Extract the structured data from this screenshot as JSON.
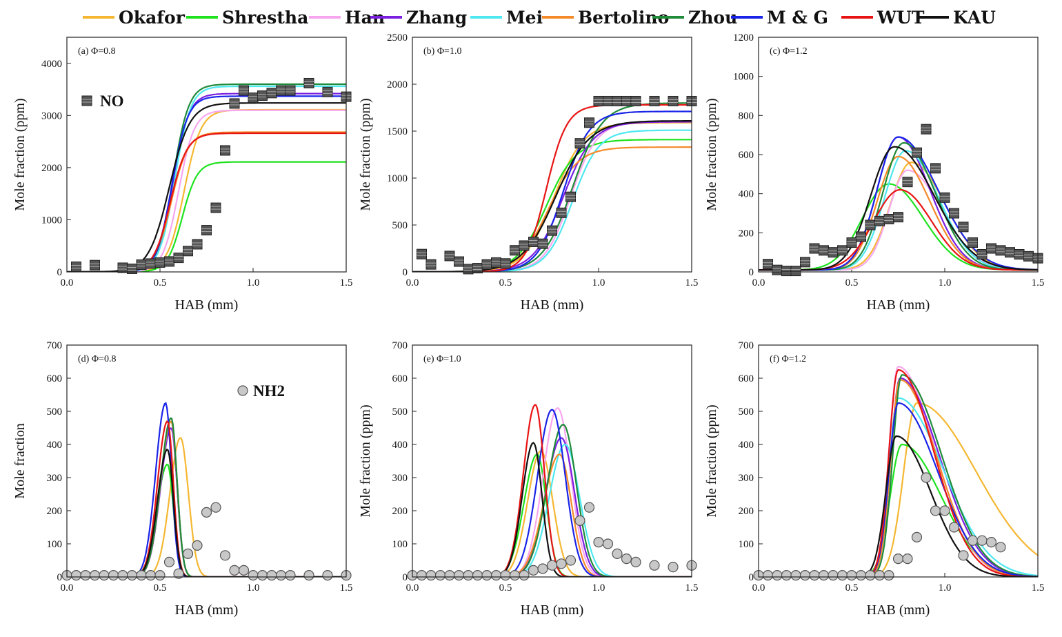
{
  "legend": [
    {
      "name": "Okafor",
      "color": "#f5b731"
    },
    {
      "name": "Shrestha",
      "color": "#1ee21e"
    },
    {
      "name": "Han",
      "color": "#f7a6ee"
    },
    {
      "name": "Zhang",
      "color": "#7a1fe0"
    },
    {
      "name": "Mei",
      "color": "#4de8f0"
    },
    {
      "name": "Bertolino",
      "color": "#f58a2a"
    },
    {
      "name": "Zhou",
      "color": "#1f8a3a"
    },
    {
      "name": "M & G",
      "color": "#1a24e8"
    },
    {
      "name": "WUT",
      "color": "#e81414"
    },
    {
      "name": "KAU",
      "color": "#111111"
    }
  ],
  "chart_data": [
    {
      "type": "line",
      "panel_label": "(a) Φ=0.8",
      "species_label": "NO",
      "marker": "square",
      "xlabel": "HAB (mm)",
      "ylabel": "Mole fraction (ppm)",
      "xlim": [
        0,
        1.5
      ],
      "ylim": [
        0,
        4500
      ],
      "xticks": [
        0,
        0.5,
        1.0,
        1.5
      ],
      "xtick_labels": [
        "0.0",
        "0.5",
        "1.0",
        "1.5"
      ],
      "yticks": [
        0,
        1000,
        2000,
        3000,
        4000
      ],
      "ytick_labels": [
        "0",
        "1000",
        "2000",
        "3000",
        "4000"
      ],
      "model_kind": "sigmoid",
      "models": [
        {
          "name": "Okafor",
          "ymax": 3110,
          "x0": 0.63,
          "w": 0.045
        },
        {
          "name": "Shrestha",
          "ymax": 2110,
          "x0": 0.62,
          "w": 0.04
        },
        {
          "name": "Han",
          "ymax": 3100,
          "x0": 0.6,
          "w": 0.042
        },
        {
          "name": "Zhang",
          "ymax": 3420,
          "x0": 0.57,
          "w": 0.042
        },
        {
          "name": "Mei",
          "ymax": 3560,
          "x0": 0.58,
          "w": 0.042
        },
        {
          "name": "Bertolino",
          "ymax": 2680,
          "x0": 0.56,
          "w": 0.045
        },
        {
          "name": "Zhou",
          "ymax": 3600,
          "x0": 0.57,
          "w": 0.042
        },
        {
          "name": "M & G",
          "ymax": 3370,
          "x0": 0.565,
          "w": 0.042
        },
        {
          "name": "WUT",
          "ymax": 2660,
          "x0": 0.555,
          "w": 0.045
        },
        {
          "name": "KAU",
          "ymax": 3240,
          "x0": 0.55,
          "w": 0.055
        }
      ],
      "experiment": {
        "x": [
          0.05,
          0.15,
          0.3,
          0.35,
          0.4,
          0.45,
          0.5,
          0.55,
          0.6,
          0.65,
          0.7,
          0.75,
          0.8,
          0.85,
          0.9,
          0.95,
          1.0,
          1.05,
          1.1,
          1.15,
          1.2,
          1.3,
          1.4,
          1.5
        ],
        "y": [
          100,
          130,
          80,
          60,
          140,
          160,
          180,
          200,
          270,
          400,
          530,
          800,
          1230,
          2330,
          3230,
          3480,
          3340,
          3380,
          3430,
          3480,
          3480,
          3620,
          3450,
          3360
        ]
      }
    },
    {
      "type": "line",
      "panel_label": "(b) Φ=1.0",
      "species_label": "",
      "marker": "square",
      "xlabel": "HAB (mm)",
      "ylabel": "Mole fraction (ppm)",
      "xlim": [
        0,
        1.5
      ],
      "ylim": [
        0,
        2500
      ],
      "xticks": [
        0,
        0.5,
        1.0,
        1.5
      ],
      "xtick_labels": [
        "0.0",
        "0.5",
        "1.0",
        "1.5"
      ],
      "yticks": [
        0,
        500,
        1000,
        1500,
        2000,
        2500
      ],
      "ytick_labels": [
        "0",
        "500",
        "1000",
        "1500",
        "2000",
        "2500"
      ],
      "model_kind": "sigmoid",
      "models": [
        {
          "name": "Okafor",
          "ymax": 1590,
          "x0": 0.76,
          "w": 0.08
        },
        {
          "name": "Shrestha",
          "ymax": 1410,
          "x0": 0.72,
          "w": 0.08
        },
        {
          "name": "Han",
          "ymax": 1600,
          "x0": 0.85,
          "w": 0.07
        },
        {
          "name": "Zhang",
          "ymax": 1600,
          "x0": 0.81,
          "w": 0.08
        },
        {
          "name": "Mei",
          "ymax": 1510,
          "x0": 0.86,
          "w": 0.07
        },
        {
          "name": "Bertolino",
          "ymax": 1330,
          "x0": 0.73,
          "w": 0.08
        },
        {
          "name": "Zhou",
          "ymax": 1800,
          "x0": 0.86,
          "w": 0.08
        },
        {
          "name": "M & G",
          "ymax": 1710,
          "x0": 0.81,
          "w": 0.07
        },
        {
          "name": "WUT",
          "ymax": 1780,
          "x0": 0.72,
          "w": 0.055
        },
        {
          "name": "KAU",
          "ymax": 1610,
          "x0": 0.77,
          "w": 0.09
        }
      ],
      "experiment": {
        "x": [
          0.05,
          0.1,
          0.2,
          0.25,
          0.3,
          0.35,
          0.4,
          0.45,
          0.5,
          0.55,
          0.6,
          0.65,
          0.7,
          0.75,
          0.8,
          0.85,
          0.9,
          0.95,
          1.0,
          1.05,
          1.1,
          1.15,
          1.2,
          1.3,
          1.4,
          1.5
        ],
        "y": [
          190,
          80,
          170,
          110,
          30,
          40,
          80,
          100,
          90,
          230,
          280,
          320,
          300,
          440,
          630,
          800,
          1370,
          1590,
          1820,
          1820,
          1820,
          1820,
          1820,
          1820,
          1820,
          1820
        ]
      }
    },
    {
      "type": "line",
      "panel_label": "(c) Φ=1.2",
      "species_label": "",
      "marker": "square",
      "xlabel": "HAB (mm)",
      "ylabel": "Mole fraction (ppm)",
      "xlim": [
        0,
        1.5
      ],
      "ylim": [
        0,
        1200
      ],
      "xticks": [
        0,
        0.5,
        1.0,
        1.5
      ],
      "xtick_labels": [
        "0.0",
        "0.5",
        "1.0",
        "1.5"
      ],
      "yticks": [
        0,
        200,
        400,
        600,
        800,
        1000,
        1200
      ],
      "ytick_labels": [
        "0",
        "200",
        "400",
        "600",
        "800",
        "1000",
        "1200"
      ],
      "model_kind": "peak",
      "base": 10,
      "models": [
        {
          "name": "Okafor",
          "ymax": 560,
          "xp": 0.82,
          "wl": 0.16,
          "wr": 0.26
        },
        {
          "name": "Shrestha",
          "ymax": 450,
          "xp": 0.7,
          "wl": 0.2,
          "wr": 0.26
        },
        {
          "name": "Han",
          "ymax": 520,
          "xp": 0.8,
          "wl": 0.14,
          "wr": 0.26
        },
        {
          "name": "Zhang",
          "ymax": 690,
          "xp": 0.75,
          "wl": 0.16,
          "wr": 0.24
        },
        {
          "name": "Mei",
          "ymax": 620,
          "xp": 0.79,
          "wl": 0.16,
          "wr": 0.25
        },
        {
          "name": "Bertolino",
          "ymax": 590,
          "xp": 0.75,
          "wl": 0.16,
          "wr": 0.24
        },
        {
          "name": "Zhou",
          "ymax": 660,
          "xp": 0.78,
          "wl": 0.16,
          "wr": 0.24
        },
        {
          "name": "M & G",
          "ymax": 690,
          "xp": 0.75,
          "wl": 0.16,
          "wr": 0.3
        },
        {
          "name": "WUT",
          "ymax": 420,
          "xp": 0.76,
          "wl": 0.2,
          "wr": 0.24
        },
        {
          "name": "KAU",
          "ymax": 640,
          "xp": 0.73,
          "wl": 0.18,
          "wr": 0.3
        }
      ],
      "experiment": {
        "x": [
          0.05,
          0.1,
          0.15,
          0.2,
          0.25,
          0.3,
          0.35,
          0.4,
          0.45,
          0.5,
          0.55,
          0.6,
          0.65,
          0.7,
          0.75,
          0.8,
          0.85,
          0.9,
          0.95,
          1.0,
          1.05,
          1.1,
          1.15,
          1.2,
          1.25,
          1.3,
          1.35,
          1.4,
          1.45,
          1.5
        ],
        "y": [
          40,
          10,
          5,
          5,
          50,
          120,
          110,
          100,
          110,
          150,
          180,
          240,
          260,
          270,
          280,
          460,
          610,
          730,
          530,
          380,
          300,
          230,
          150,
          90,
          120,
          110,
          100,
          90,
          80,
          70
        ]
      }
    },
    {
      "type": "line",
      "panel_label": "(d) Φ=0.8",
      "species_label": "NH2",
      "marker": "circle",
      "xlabel": "HAB (mm)",
      "ylabel": "Mole fraction",
      "xlim": [
        0,
        1.5
      ],
      "ylim": [
        0,
        700
      ],
      "xticks": [
        0,
        0.5,
        1.0,
        1.5
      ],
      "xtick_labels": [
        "0.0",
        "0.5",
        "1.0",
        "1.5"
      ],
      "yticks": [
        0,
        100,
        200,
        300,
        400,
        500,
        600,
        700
      ],
      "ytick_labels": [
        "0",
        "100",
        "200",
        "300",
        "400",
        "500",
        "600",
        "700"
      ],
      "model_kind": "peak",
      "base": 0,
      "models": [
        {
          "name": "Okafor",
          "ymax": 420,
          "xp": 0.61,
          "wl": 0.08,
          "wr": 0.06
        },
        {
          "name": "Shrestha",
          "ymax": 340,
          "xp": 0.54,
          "wl": 0.08,
          "wr": 0.045
        },
        {
          "name": "Han",
          "ymax": 480,
          "xp": 0.56,
          "wl": 0.08,
          "wr": 0.045
        },
        {
          "name": "Zhang",
          "ymax": 450,
          "xp": 0.56,
          "wl": 0.08,
          "wr": 0.045
        },
        {
          "name": "Mei",
          "ymax": 470,
          "xp": 0.56,
          "wl": 0.08,
          "wr": 0.045
        },
        {
          "name": "Bertolino",
          "ymax": 470,
          "xp": 0.56,
          "wl": 0.08,
          "wr": 0.045
        },
        {
          "name": "Zhou",
          "ymax": 480,
          "xp": 0.56,
          "wl": 0.08,
          "wr": 0.045
        },
        {
          "name": "M & G",
          "ymax": 525,
          "xp": 0.53,
          "wl": 0.075,
          "wr": 0.045
        },
        {
          "name": "WUT",
          "ymax": 470,
          "xp": 0.54,
          "wl": 0.075,
          "wr": 0.045
        },
        {
          "name": "KAU",
          "ymax": 385,
          "xp": 0.54,
          "wl": 0.075,
          "wr": 0.045
        }
      ],
      "experiment": {
        "x": [
          0.0,
          0.05,
          0.1,
          0.15,
          0.2,
          0.25,
          0.3,
          0.35,
          0.4,
          0.45,
          0.5,
          0.55,
          0.6,
          0.65,
          0.7,
          0.75,
          0.8,
          0.85,
          0.9,
          0.95,
          1.0,
          1.05,
          1.1,
          1.15,
          1.2,
          1.3,
          1.4,
          1.5
        ],
        "y": [
          5,
          5,
          5,
          5,
          5,
          5,
          5,
          5,
          5,
          5,
          5,
          45,
          10,
          70,
          95,
          195,
          210,
          65,
          20,
          20,
          5,
          5,
          5,
          5,
          5,
          5,
          5,
          5
        ]
      }
    },
    {
      "type": "line",
      "panel_label": "(e) Φ=1.0",
      "species_label": "",
      "marker": "circle",
      "xlabel": "HAB (mm)",
      "ylabel": "Mole fraction (ppm)",
      "xlim": [
        0,
        1.5
      ],
      "ylim": [
        0,
        700
      ],
      "xticks": [
        0,
        0.5,
        1.0,
        1.5
      ],
      "xtick_labels": [
        "0.0",
        "0.5",
        "1.0",
        "1.5"
      ],
      "yticks": [
        0,
        100,
        200,
        300,
        400,
        500,
        600,
        700
      ],
      "ytick_labels": [
        "0",
        "100",
        "200",
        "300",
        "400",
        "500",
        "600",
        "700"
      ],
      "model_kind": "peak",
      "base": 0,
      "models": [
        {
          "name": "Okafor",
          "ymax": 380,
          "xp": 0.69,
          "wl": 0.1,
          "wr": 0.09
        },
        {
          "name": "Shrestha",
          "ymax": 370,
          "xp": 0.67,
          "wl": 0.1,
          "wr": 0.07
        },
        {
          "name": "Han",
          "ymax": 510,
          "xp": 0.78,
          "wl": 0.11,
          "wr": 0.1
        },
        {
          "name": "Zhang",
          "ymax": 420,
          "xp": 0.8,
          "wl": 0.12,
          "wr": 0.1
        },
        {
          "name": "Mei",
          "ymax": 400,
          "xp": 0.82,
          "wl": 0.12,
          "wr": 0.11
        },
        {
          "name": "Bertolino",
          "ymax": 370,
          "xp": 0.79,
          "wl": 0.12,
          "wr": 0.09
        },
        {
          "name": "Zhou",
          "ymax": 460,
          "xp": 0.81,
          "wl": 0.12,
          "wr": 0.1
        },
        {
          "name": "M & G",
          "ymax": 505,
          "xp": 0.75,
          "wl": 0.11,
          "wr": 0.1
        },
        {
          "name": "WUT",
          "ymax": 520,
          "xp": 0.66,
          "wl": 0.09,
          "wr": 0.07
        },
        {
          "name": "KAU",
          "ymax": 405,
          "xp": 0.65,
          "wl": 0.085,
          "wr": 0.065
        }
      ],
      "experiment": {
        "x": [
          0.0,
          0.05,
          0.1,
          0.15,
          0.2,
          0.25,
          0.3,
          0.35,
          0.4,
          0.45,
          0.5,
          0.55,
          0.6,
          0.65,
          0.7,
          0.75,
          0.8,
          0.85,
          0.9,
          0.95,
          1.0,
          1.05,
          1.1,
          1.15,
          1.2,
          1.3,
          1.4,
          1.5
        ],
        "y": [
          5,
          5,
          5,
          5,
          5,
          5,
          5,
          5,
          5,
          5,
          5,
          5,
          5,
          20,
          25,
          35,
          40,
          50,
          170,
          210,
          105,
          100,
          70,
          55,
          45,
          35,
          30,
          35
        ]
      }
    },
    {
      "type": "line",
      "panel_label": "(f) Φ=1.2",
      "species_label": "",
      "marker": "circle",
      "xlabel": "HAB (mm)",
      "ylabel": "Mole fraction (ppm)",
      "xlim": [
        0,
        1.5
      ],
      "ylim": [
        0,
        700
      ],
      "xticks": [
        0,
        0.5,
        1.0,
        1.5
      ],
      "xtick_labels": [
        "0.0",
        "0.5",
        "1.0",
        "1.5"
      ],
      "yticks": [
        0,
        100,
        200,
        300,
        400,
        500,
        600,
        700
      ],
      "ytick_labels": [
        "0",
        "100",
        "200",
        "300",
        "400",
        "500",
        "600",
        "700"
      ],
      "model_kind": "peak",
      "base": 0,
      "models": [
        {
          "name": "Okafor",
          "ymax": 525,
          "xp": 0.85,
          "wl": 0.1,
          "wr": 0.45
        },
        {
          "name": "Shrestha",
          "ymax": 400,
          "xp": 0.77,
          "wl": 0.09,
          "wr": 0.3
        },
        {
          "name": "Han",
          "ymax": 635,
          "xp": 0.75,
          "wl": 0.07,
          "wr": 0.28
        },
        {
          "name": "Zhang",
          "ymax": 600,
          "xp": 0.76,
          "wl": 0.07,
          "wr": 0.3
        },
        {
          "name": "Mei",
          "ymax": 540,
          "xp": 0.75,
          "wl": 0.07,
          "wr": 0.34
        },
        {
          "name": "Bertolino",
          "ymax": 595,
          "xp": 0.76,
          "wl": 0.07,
          "wr": 0.28
        },
        {
          "name": "Zhou",
          "ymax": 610,
          "xp": 0.77,
          "wl": 0.07,
          "wr": 0.3
        },
        {
          "name": "M & G",
          "ymax": 525,
          "xp": 0.75,
          "wl": 0.07,
          "wr": 0.3
        },
        {
          "name": "WUT",
          "ymax": 625,
          "xp": 0.75,
          "wl": 0.07,
          "wr": 0.27
        },
        {
          "name": "KAU",
          "ymax": 425,
          "xp": 0.74,
          "wl": 0.08,
          "wr": 0.26
        }
      ],
      "experiment": {
        "x": [
          0.0,
          0.05,
          0.1,
          0.15,
          0.2,
          0.25,
          0.3,
          0.35,
          0.4,
          0.45,
          0.5,
          0.55,
          0.6,
          0.65,
          0.7,
          0.75,
          0.8,
          0.85,
          0.9,
          0.95,
          1.0,
          1.05,
          1.1,
          1.15,
          1.2,
          1.25,
          1.3
        ],
        "y": [
          5,
          5,
          5,
          5,
          5,
          5,
          5,
          5,
          5,
          5,
          5,
          5,
          5,
          5,
          5,
          55,
          55,
          120,
          300,
          200,
          200,
          150,
          65,
          110,
          110,
          105,
          90
        ]
      }
    }
  ]
}
